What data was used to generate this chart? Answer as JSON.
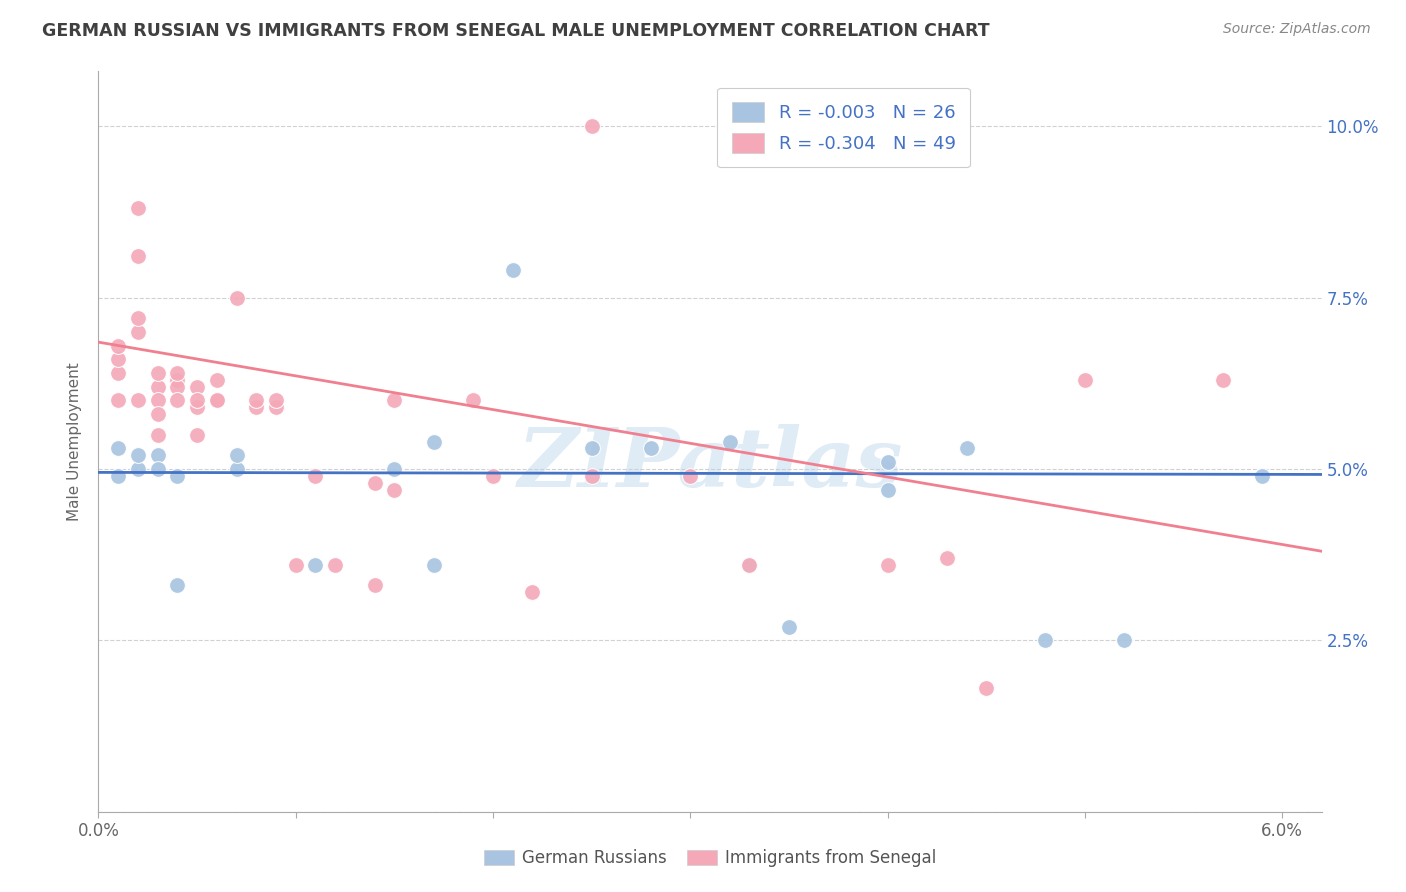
{
  "title": "GERMAN RUSSIAN VS IMMIGRANTS FROM SENEGAL MALE UNEMPLOYMENT CORRELATION CHART",
  "source": "Source: ZipAtlas.com",
  "ylabel": "Male Unemployment",
  "xlim": [
    0.0,
    0.062
  ],
  "ylim": [
    0.0,
    0.108
  ],
  "xticks": [
    0.0,
    0.01,
    0.02,
    0.03,
    0.04,
    0.05,
    0.06
  ],
  "xticklabels": [
    "0.0%",
    "",
    "",
    "",
    "",
    "",
    "6.0%"
  ],
  "yticks": [
    0.0,
    0.025,
    0.05,
    0.075,
    0.1
  ],
  "yticklabels_right": [
    "",
    "2.5%",
    "5.0%",
    "7.5%",
    "10.0%"
  ],
  "legend_r1": "R = -0.003",
  "legend_n1": "N = 26",
  "legend_r2": "R = -0.304",
  "legend_n2": "N = 49",
  "color_blue": "#a8c4e0",
  "color_pink": "#f4a8b8",
  "color_blue_line": "#4472c4",
  "color_pink_line": "#f08090",
  "color_title": "#404040",
  "watermark": "ZIPatlas",
  "blue_points_x": [
    0.001,
    0.001,
    0.002,
    0.002,
    0.003,
    0.003,
    0.004,
    0.004,
    0.007,
    0.007,
    0.011,
    0.015,
    0.017,
    0.017,
    0.021,
    0.025,
    0.028,
    0.032,
    0.033,
    0.035,
    0.04,
    0.04,
    0.044,
    0.048,
    0.052,
    0.059
  ],
  "blue_points_y": [
    0.049,
    0.053,
    0.05,
    0.052,
    0.052,
    0.05,
    0.049,
    0.033,
    0.05,
    0.052,
    0.036,
    0.05,
    0.054,
    0.036,
    0.079,
    0.053,
    0.053,
    0.054,
    0.036,
    0.027,
    0.047,
    0.051,
    0.053,
    0.025,
    0.025,
    0.049
  ],
  "pink_points_x": [
    0.001,
    0.001,
    0.001,
    0.001,
    0.002,
    0.002,
    0.002,
    0.002,
    0.002,
    0.003,
    0.003,
    0.003,
    0.003,
    0.003,
    0.004,
    0.004,
    0.004,
    0.004,
    0.005,
    0.005,
    0.005,
    0.005,
    0.006,
    0.006,
    0.006,
    0.007,
    0.008,
    0.008,
    0.009,
    0.009,
    0.01,
    0.011,
    0.012,
    0.014,
    0.014,
    0.015,
    0.015,
    0.019,
    0.02,
    0.022,
    0.025,
    0.025,
    0.03,
    0.033,
    0.04,
    0.043,
    0.045,
    0.05,
    0.057
  ],
  "pink_points_y": [
    0.064,
    0.06,
    0.066,
    0.068,
    0.088,
    0.07,
    0.072,
    0.081,
    0.06,
    0.055,
    0.062,
    0.064,
    0.06,
    0.058,
    0.063,
    0.062,
    0.064,
    0.06,
    0.055,
    0.059,
    0.062,
    0.06,
    0.06,
    0.063,
    0.06,
    0.075,
    0.059,
    0.06,
    0.059,
    0.06,
    0.036,
    0.049,
    0.036,
    0.048,
    0.033,
    0.06,
    0.047,
    0.06,
    0.049,
    0.032,
    0.049,
    0.1,
    0.049,
    0.036,
    0.036,
    0.037,
    0.018,
    0.063,
    0.063
  ],
  "blue_trendline_x": [
    0.0,
    0.062
  ],
  "blue_trendline_y": [
    0.0495,
    0.0492
  ],
  "pink_trendline_x": [
    0.0,
    0.062
  ],
  "pink_trendline_y": [
    0.0685,
    0.038
  ],
  "grid_color": "#cccccc",
  "bg_color": "#ffffff",
  "axis_color": "#aaaaaa"
}
